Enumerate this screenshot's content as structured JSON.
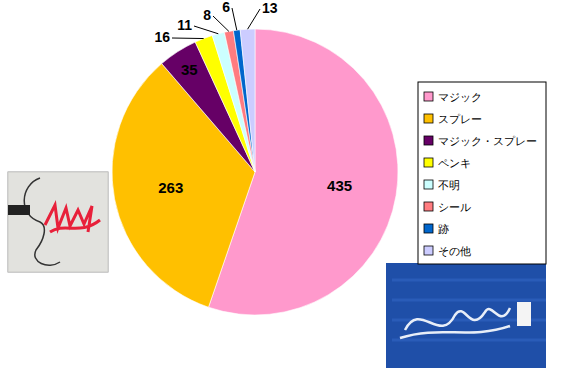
{
  "chart_data": {
    "type": "pie",
    "categories": [
      "マジック",
      "スプレー",
      "マジック・スプレー",
      "ペンキ",
      "不明",
      "シール",
      "跡",
      "その他"
    ],
    "values": [
      435,
      263,
      35,
      16,
      11,
      8,
      6,
      13
    ],
    "colors": [
      "#ff99cc",
      "#ffc000",
      "#660066",
      "#ffff00",
      "#ccffff",
      "#ff7c80",
      "#0066cc",
      "#ccccff"
    ],
    "data_labels": true,
    "legend": "right"
  }
}
